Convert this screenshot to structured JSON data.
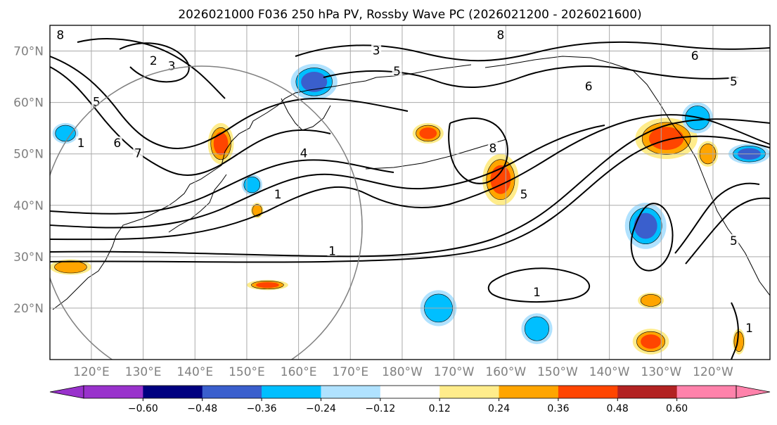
{
  "chart_data": {
    "type": "map",
    "title": "2026021000 F036 250 hPa PV, Rossby Wave PC (2026021200 - 2026021600)",
    "lat_ticks": [
      {
        "value": 70,
        "label": "70°N"
      },
      {
        "value": 60,
        "label": "60°N"
      },
      {
        "value": 50,
        "label": "50°N"
      },
      {
        "value": 40,
        "label": "40°N"
      },
      {
        "value": 30,
        "label": "30°N"
      },
      {
        "value": 20,
        "label": "20°N"
      }
    ],
    "lon_ticks": [
      {
        "value": 120,
        "label": "120°E"
      },
      {
        "value": 130,
        "label": "130°E"
      },
      {
        "value": 140,
        "label": "140°E"
      },
      {
        "value": 150,
        "label": "150°E"
      },
      {
        "value": 160,
        "label": "160°E"
      },
      {
        "value": 170,
        "label": "170°E"
      },
      {
        "value": 180,
        "label": "180°W"
      },
      {
        "value": 190,
        "label": "170°W"
      },
      {
        "value": 200,
        "label": "160°W"
      },
      {
        "value": 210,
        "label": "150°W"
      },
      {
        "value": 220,
        "label": "140°W"
      },
      {
        "value": 230,
        "label": "130°W"
      },
      {
        "value": 240,
        "label": "120°W"
      }
    ],
    "lon_range": [
      112,
      251
    ],
    "lat_range": [
      10,
      75
    ],
    "colorbar": {
      "extend": "both",
      "bounds": [
        -0.72,
        -0.6,
        -0.48,
        -0.36,
        -0.24,
        -0.12,
        0.12,
        0.24,
        0.36,
        0.48,
        0.6,
        0.72
      ],
      "colors": [
        "#9932cc",
        "#000080",
        "#3a5fcd",
        "#00bfff",
        "#b0e2ff",
        "#ffffff",
        "#ffec8b",
        "#ffa500",
        "#ff4500",
        "#b22222",
        "#ff82ab"
      ],
      "under_color": "#9932cc",
      "over_color": "#ff82ab",
      "tick_labels": [
        {
          "value": -0.6,
          "label": "−0.60"
        },
        {
          "value": -0.48,
          "label": "−0.48"
        },
        {
          "value": -0.36,
          "label": "−0.36"
        },
        {
          "value": -0.24,
          "label": "−0.24"
        },
        {
          "value": -0.12,
          "label": "−0.12"
        },
        {
          "value": 0.12,
          "label": "0.12"
        },
        {
          "value": 0.24,
          "label": "0.24"
        },
        {
          "value": 0.36,
          "label": "0.36"
        },
        {
          "value": 0.48,
          "label": "0.48"
        },
        {
          "value": 0.6,
          "label": "0.60"
        }
      ]
    },
    "shaded_anomalies": [
      {
        "name": "okhotsk-positive",
        "lon": 145,
        "lat": 52,
        "rx": 2.5,
        "ry": 4,
        "value": 0.4
      },
      {
        "name": "kamchatka-negative",
        "lon": 163,
        "lat": 64,
        "rx": 4.5,
        "ry": 3.5,
        "value": -0.45
      },
      {
        "name": "japan-negative",
        "lon": 151,
        "lat": 44,
        "rx": 2,
        "ry": 2,
        "value": -0.3
      },
      {
        "name": "west-pacific-positive",
        "lon": 152,
        "lat": 39,
        "rx": 1.2,
        "ry": 1.5,
        "value": 0.3
      },
      {
        "name": "bering-positive",
        "lon": 185,
        "lat": 54,
        "rx": 3,
        "ry": 2,
        "value": 0.4
      },
      {
        "name": "central-pacific-positive",
        "lon": 199,
        "lat": 45,
        "rx": 3.5,
        "ry": 5,
        "value": 0.38
      },
      {
        "name": "gulf-alaska-positive",
        "lon": 231,
        "lat": 53,
        "rx": 6,
        "ry": 4,
        "value": 0.42
      },
      {
        "name": "ne-pacific-negative",
        "lon": 227,
        "lat": 36,
        "rx": 4,
        "ry": 4.5,
        "value": -0.45
      },
      {
        "name": "tropical-positive-1",
        "lon": 154,
        "lat": 24.5,
        "rx": 4,
        "ry": 1,
        "value": 0.38
      },
      {
        "name": "tropical-negative-1",
        "lon": 187,
        "lat": 20,
        "rx": 3.5,
        "ry": 3.5,
        "value": -0.3
      },
      {
        "name": "tropical-negative-2",
        "lon": 206,
        "lat": 16,
        "rx": 3,
        "ry": 3,
        "value": -0.3
      },
      {
        "name": "tropical-positive-2",
        "lon": 228,
        "lat": 13.5,
        "rx": 3.5,
        "ry": 2.5,
        "value": 0.4
      },
      {
        "name": "tropical-positive-3",
        "lon": 116,
        "lat": 28,
        "rx": 4,
        "ry": 1.5,
        "value": 0.28
      },
      {
        "name": "ne-pacific-positive-small",
        "lon": 228,
        "lat": 21.5,
        "rx": 2.5,
        "ry": 1.5,
        "value": 0.28
      },
      {
        "name": "west-coast-negative",
        "lon": 247,
        "lat": 50,
        "rx": 4,
        "ry": 2,
        "value": -0.4
      },
      {
        "name": "alaska-negative",
        "lon": 237,
        "lat": 57,
        "rx": 3,
        "ry": 3,
        "value": -0.3
      },
      {
        "name": "nw-negative",
        "lon": 115,
        "lat": 54,
        "rx": 2.5,
        "ry": 2,
        "value": -0.3
      },
      {
        "name": "east-positive",
        "lon": 239,
        "lat": 50,
        "rx": 2,
        "ry": 2.5,
        "value": 0.28
      },
      {
        "name": "far-east-positive",
        "lon": 245,
        "lat": 13.5,
        "rx": 1.2,
        "ry": 2.5,
        "value": 0.3
      }
    ],
    "contour_labels": [
      {
        "text": "2",
        "lon": 132,
        "lat": 68
      },
      {
        "text": "3",
        "lon": 135.5,
        "lat": 67
      },
      {
        "text": "5",
        "lon": 121,
        "lat": 60
      },
      {
        "text": "1",
        "lon": 118,
        "lat": 52
      },
      {
        "text": "6",
        "lon": 125,
        "lat": 52
      },
      {
        "text": "7",
        "lon": 129,
        "lat": 50
      },
      {
        "text": "8",
        "lon": 114,
        "lat": 73
      },
      {
        "text": "3",
        "lon": 175,
        "lat": 70
      },
      {
        "text": "5",
        "lon": 179,
        "lat": 66
      },
      {
        "text": "8",
        "lon": 199,
        "lat": 73
      },
      {
        "text": "6",
        "lon": 216,
        "lat": 63
      },
      {
        "text": "4",
        "lon": 161,
        "lat": 50
      },
      {
        "text": "1",
        "lon": 156,
        "lat": 42
      },
      {
        "text": "8",
        "lon": 197.5,
        "lat": 51
      },
      {
        "text": "5",
        "lon": 203.5,
        "lat": 42
      },
      {
        "text": "1",
        "lon": 166.5,
        "lat": 31
      },
      {
        "text": "1",
        "lon": 206,
        "lat": 23
      },
      {
        "text": "5",
        "lon": 244,
        "lat": 33
      },
      {
        "text": "6",
        "lon": 236.5,
        "lat": 69
      },
      {
        "text": "5",
        "lon": 244,
        "lat": 64
      },
      {
        "text": "1",
        "lon": 247,
        "lat": 16
      }
    ]
  }
}
